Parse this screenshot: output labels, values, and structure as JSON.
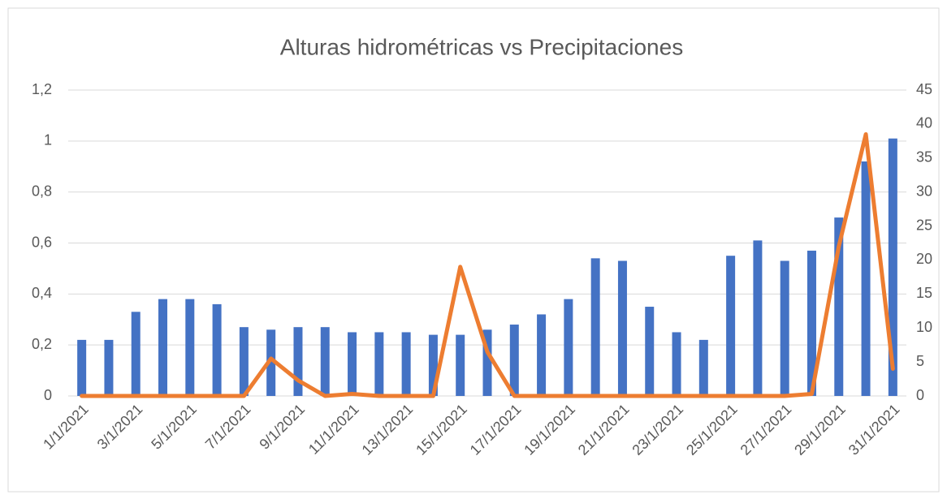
{
  "chart_data": {
    "type": "bar-line",
    "title": "Alturas hidrométricas vs Precipitaciones",
    "categories": [
      "1/1/2021",
      null,
      "3/1/2021",
      null,
      "5/1/2021",
      null,
      "7/1/2021",
      null,
      "9/1/2021",
      null,
      "11/1/2021",
      null,
      "13/1/2021",
      null,
      "15/1/2021",
      null,
      "17/1/2021",
      null,
      "19/1/2021",
      null,
      "21/1/2021",
      null,
      "23/1/2021",
      null,
      "25/1/2021",
      null,
      "27/1/2021",
      null,
      "29/1/2021",
      null,
      "31/1/2021"
    ],
    "series": [
      {
        "type": "bar",
        "color": "#4472c4",
        "values": [
          0.22,
          0.22,
          0.33,
          0.38,
          0.38,
          0.36,
          0.27,
          0.26,
          0.27,
          0.27,
          0.25,
          0.25,
          0.25,
          0.24,
          0.24,
          0.26,
          0.28,
          0.32,
          0.38,
          0.54,
          0.53,
          0.35,
          0.25,
          0.22,
          0.55,
          0.61,
          0.53,
          0.57,
          0.7,
          0.92,
          1.01
        ]
      },
      {
        "type": "line",
        "axis": "y2",
        "color": "#ed7d31",
        "values": [
          0,
          0,
          0,
          0,
          0,
          0,
          0,
          5.5,
          2.3,
          0,
          0.3,
          0,
          0,
          0,
          19,
          6.5,
          0,
          0,
          0,
          0,
          0,
          0,
          0,
          0,
          0,
          0,
          0,
          0.3,
          22,
          38.5,
          4
        ]
      }
    ],
    "ylim": [
      0,
      1.2
    ],
    "yticks": [
      0,
      {
        "value": 0.2,
        "label": "0,2"
      },
      {
        "value": 0.4,
        "label": "0,4"
      },
      {
        "value": 0.6,
        "label": "0,6"
      },
      {
        "value": 0.8,
        "label": "0,8"
      },
      1,
      {
        "value": 1.2,
        "label": "1,2"
      }
    ],
    "y2lim": [
      0,
      45
    ],
    "y2ticks": [
      0,
      5,
      10,
      15,
      20,
      25,
      30,
      35,
      40,
      45
    ],
    "grid": true
  }
}
